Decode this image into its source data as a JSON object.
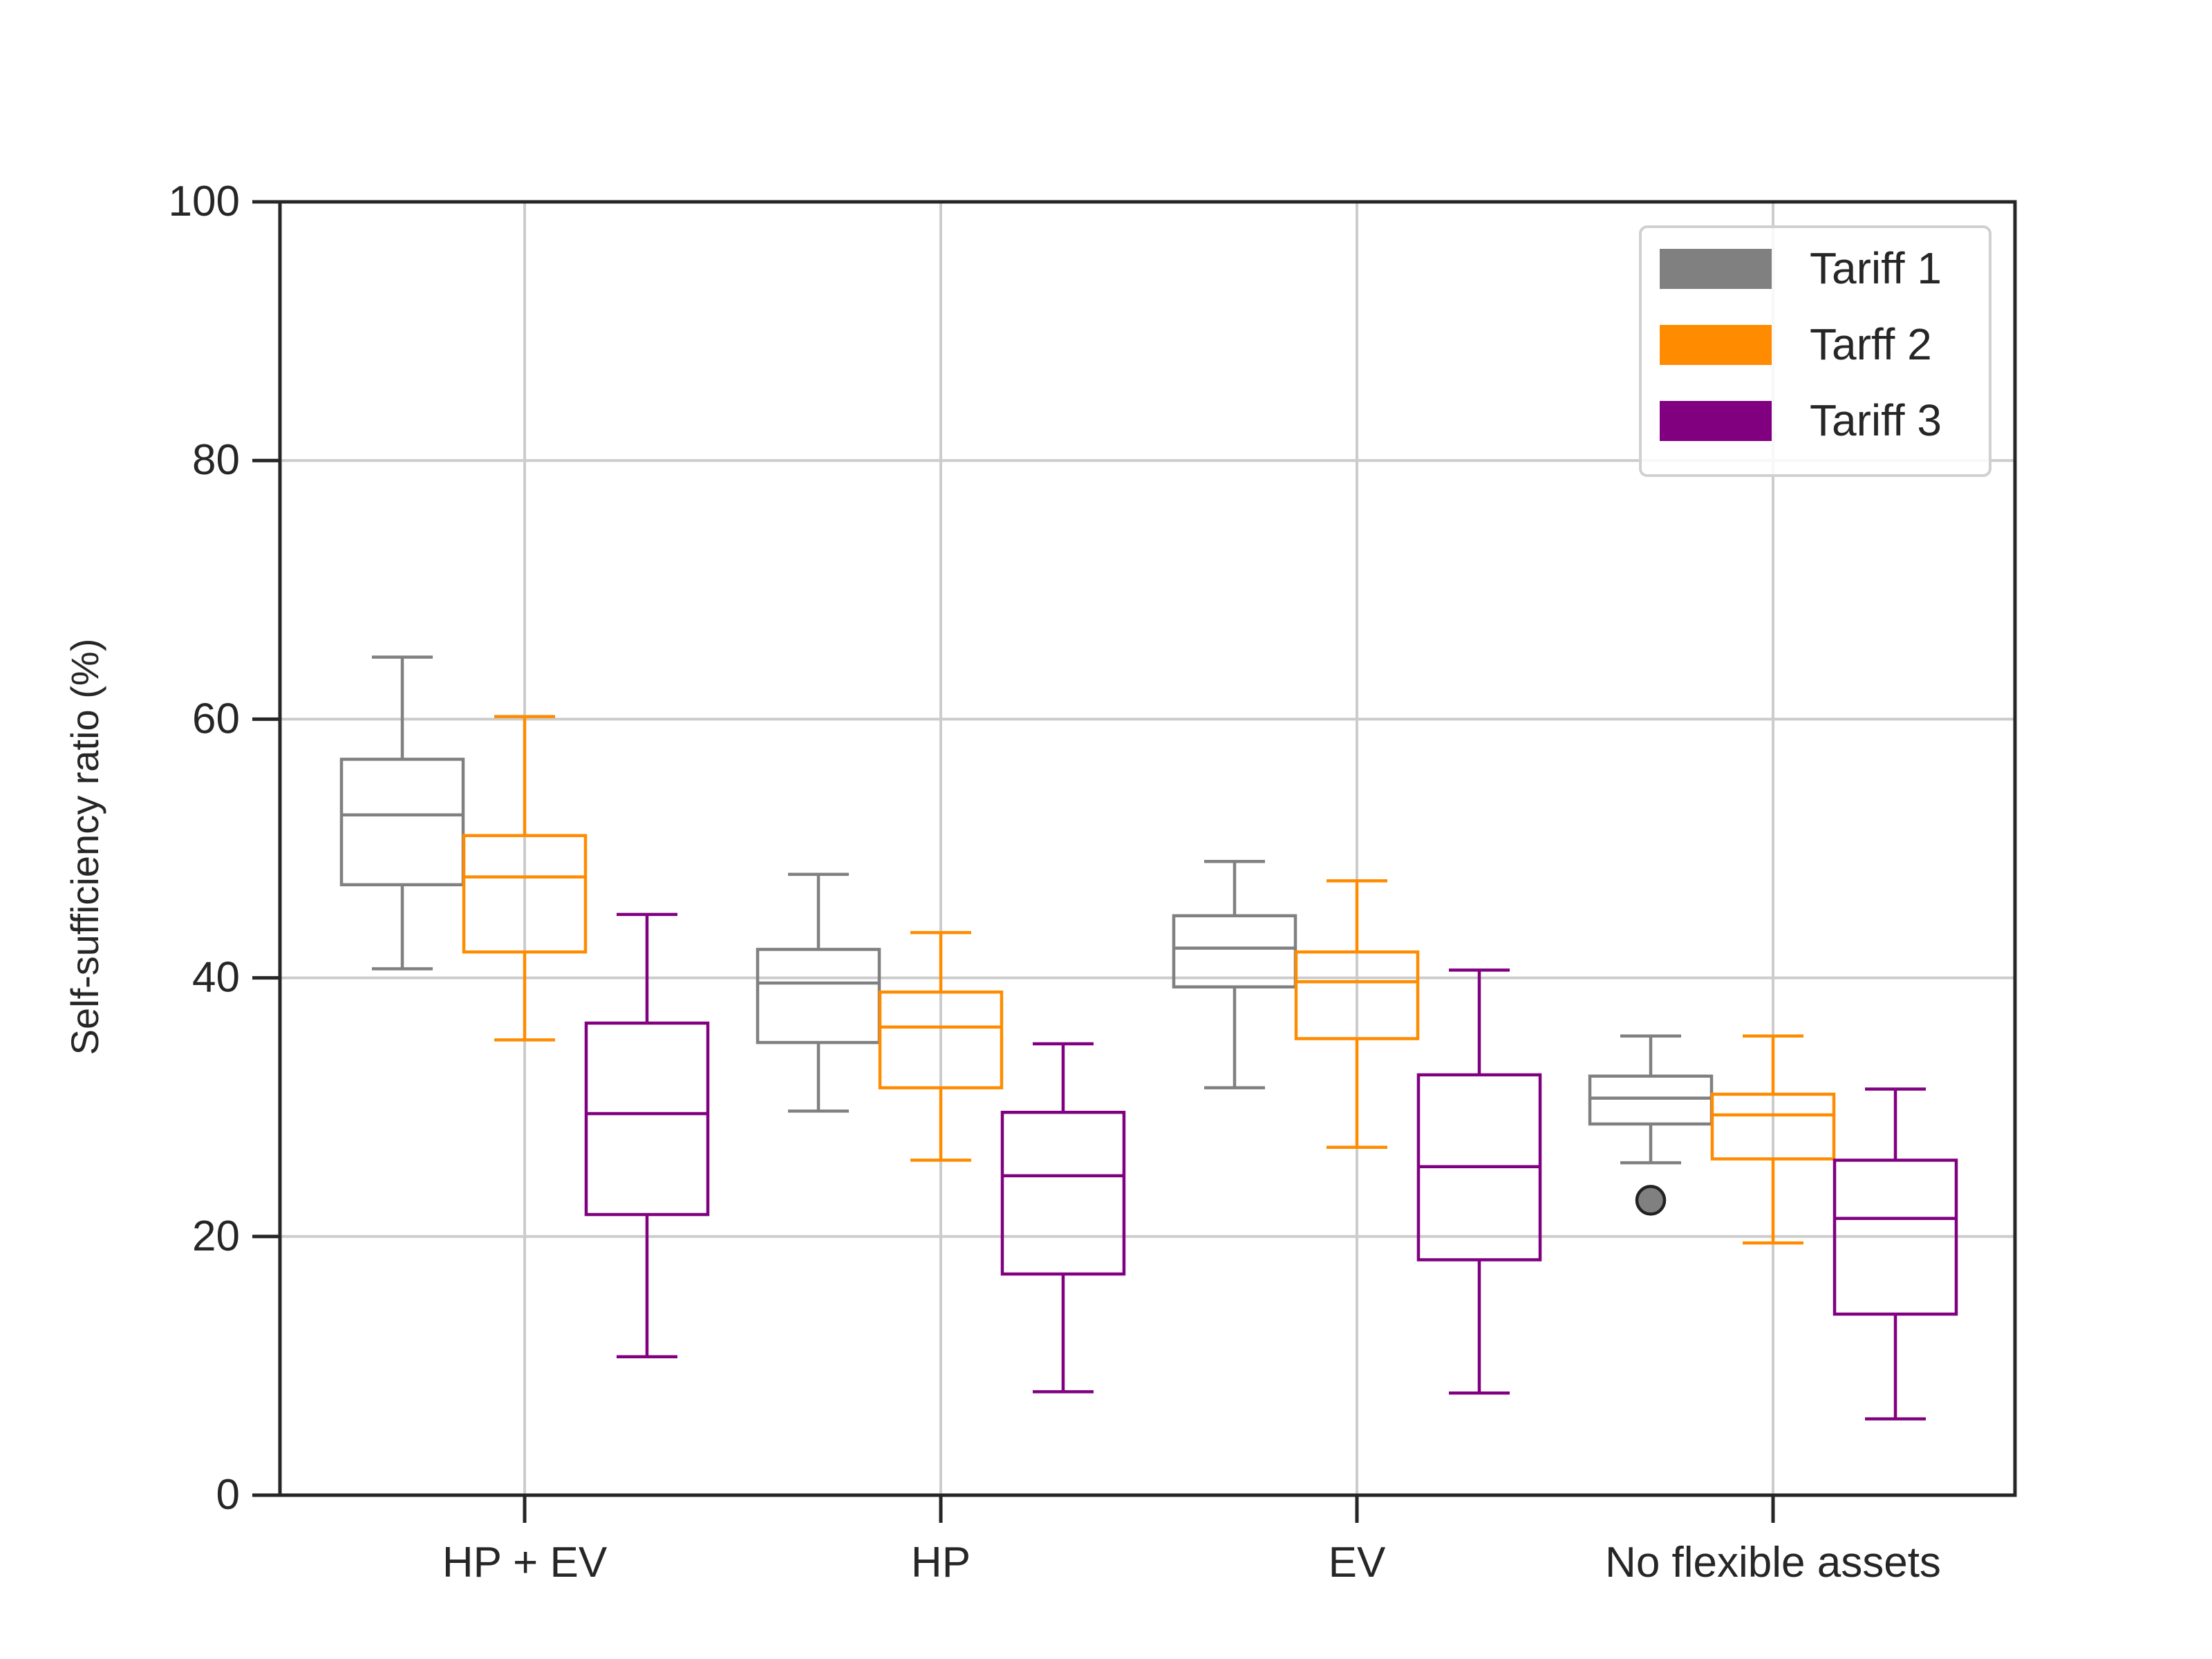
{
  "chart_data": {
    "type": "boxplot",
    "title": "",
    "xlabel": "",
    "ylabel": "Self-sufficiency ratio (%)",
    "ylim": [
      0,
      100
    ],
    "yticks": [
      0,
      20,
      40,
      60,
      80,
      100
    ],
    "grid": true,
    "legend_position": "top-right",
    "categories": [
      "HP + EV",
      "HP",
      "EV",
      "No flexible assets"
    ],
    "series": [
      {
        "name": "Tariff 1",
        "color": "#808080",
        "boxes": [
          {
            "whisker_low": 40.7,
            "q1": 47.2,
            "median": 52.6,
            "q3": 56.9,
            "whisker_high": 64.8,
            "outliers": []
          },
          {
            "whisker_low": 29.7,
            "q1": 35.0,
            "median": 39.6,
            "q3": 42.2,
            "whisker_high": 48.0,
            "outliers": []
          },
          {
            "whisker_low": 31.5,
            "q1": 39.3,
            "median": 42.3,
            "q3": 44.8,
            "whisker_high": 49.0,
            "outliers": []
          },
          {
            "whisker_low": 25.7,
            "q1": 28.7,
            "median": 30.7,
            "q3": 32.4,
            "whisker_high": 35.5,
            "outliers": [
              22.8
            ]
          }
        ]
      },
      {
        "name": "Tarff 2",
        "color": "#ff8c00",
        "boxes": [
          {
            "whisker_low": 35.2,
            "q1": 42.0,
            "median": 47.8,
            "q3": 51.0,
            "whisker_high": 60.2,
            "outliers": []
          },
          {
            "whisker_low": 25.9,
            "q1": 31.5,
            "median": 36.2,
            "q3": 38.9,
            "whisker_high": 43.5,
            "outliers": []
          },
          {
            "whisker_low": 26.9,
            "q1": 35.3,
            "median": 39.7,
            "q3": 42.0,
            "whisker_high": 47.5,
            "outliers": []
          },
          {
            "whisker_low": 19.5,
            "q1": 26.0,
            "median": 29.4,
            "q3": 31.0,
            "whisker_high": 35.5,
            "outliers": []
          }
        ]
      },
      {
        "name": "Tariff 3",
        "color": "#800080",
        "boxes": [
          {
            "whisker_low": 10.7,
            "q1": 21.7,
            "median": 29.5,
            "q3": 36.5,
            "whisker_high": 44.9,
            "outliers": []
          },
          {
            "whisker_low": 8.0,
            "q1": 17.1,
            "median": 24.7,
            "q3": 29.6,
            "whisker_high": 34.9,
            "outliers": []
          },
          {
            "whisker_low": 7.9,
            "q1": 18.2,
            "median": 25.4,
            "q3": 32.5,
            "whisker_high": 40.6,
            "outliers": []
          },
          {
            "whisker_low": 5.9,
            "q1": 14.0,
            "median": 21.4,
            "q3": 25.9,
            "whisker_high": 31.4,
            "outliers": []
          }
        ]
      }
    ]
  }
}
